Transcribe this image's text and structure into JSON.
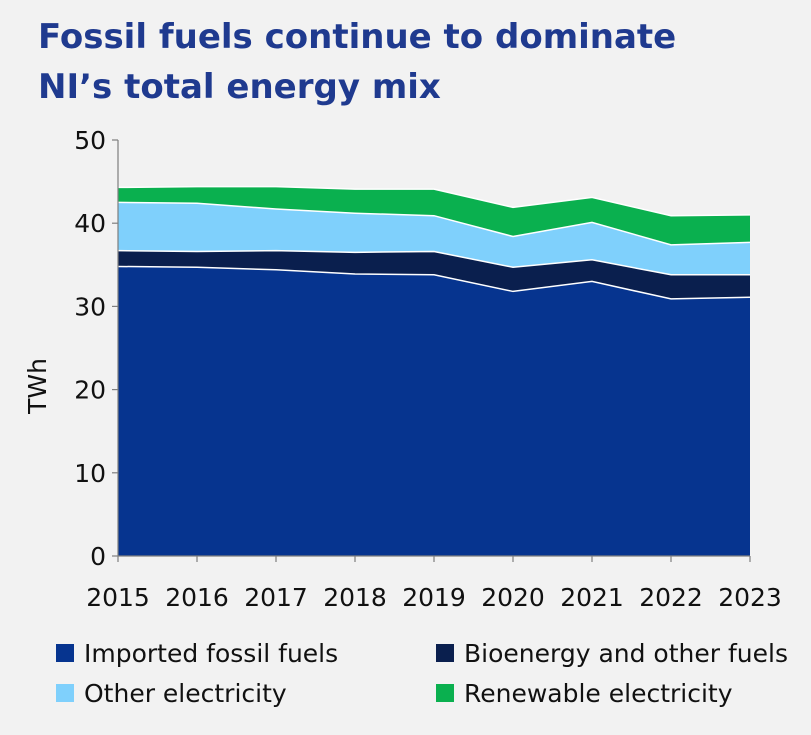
{
  "title_lines": [
    "Fossil fuels continue to dominate",
    "NI’s total energy mix"
  ],
  "chart_data": {
    "type": "area",
    "stacked": true,
    "title": "Fossil fuels continue to dominate NI’s total energy mix",
    "xlabel": "",
    "ylabel": "TWh",
    "x": [
      "2015",
      "2016",
      "2017",
      "2018",
      "2019",
      "2020",
      "2021",
      "2022",
      "2023"
    ],
    "ylim": [
      0,
      50
    ],
    "yticks": [
      0,
      10,
      20,
      30,
      40,
      50
    ],
    "grid": false,
    "legend_position": "bottom",
    "series": [
      {
        "name": "Imported fossil fuels",
        "color": "#06348f",
        "values": [
          34.8,
          34.7,
          34.4,
          33.9,
          33.8,
          31.8,
          33.0,
          30.9,
          31.1
        ]
      },
      {
        "name": "Bioenergy and other fuels",
        "color": "#0a1f4e",
        "values": [
          1.9,
          1.9,
          2.3,
          2.6,
          2.8,
          2.9,
          2.6,
          2.9,
          2.7
        ]
      },
      {
        "name": "Other electricity",
        "color": "#7fd0fc",
        "values": [
          5.8,
          5.8,
          5.0,
          4.7,
          4.3,
          3.7,
          4.5,
          3.6,
          3.9
        ]
      },
      {
        "name": "Renewable electricity",
        "color": "#0ab04f",
        "values": [
          1.8,
          2.0,
          2.7,
          2.9,
          3.2,
          3.5,
          3.0,
          3.5,
          3.3
        ]
      }
    ]
  },
  "legend": [
    {
      "label": "Imported fossil fuels",
      "color": "#06348f"
    },
    {
      "label": "Bioenergy and other fuels",
      "color": "#0a1f4e"
    },
    {
      "label": "Other electricity",
      "color": "#7fd0fc"
    },
    {
      "label": "Renewable electricity",
      "color": "#0ab04f"
    }
  ]
}
